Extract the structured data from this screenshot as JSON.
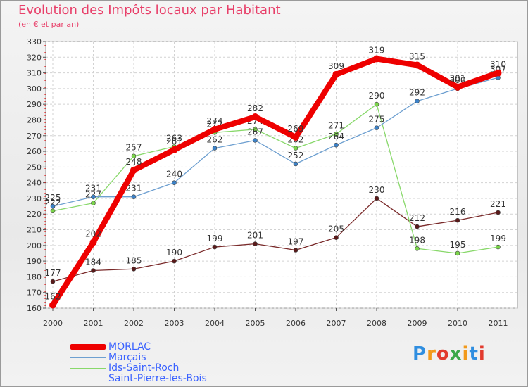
{
  "title": "Evolution des Impôts locaux par Habitant",
  "subtitle": "(en € et par an)",
  "logo_text": "Proxiti",
  "logo_colors": [
    "#2f8ee0",
    "#f29a1c",
    "#e23b2e",
    "#3aa84a",
    "#f29a1c",
    "#2f8ee0",
    "#e23b2e"
  ],
  "chart_data": {
    "type": "line",
    "title": "Evolution des Impôts locaux par Habitant",
    "subtitle": "(en € et par an)",
    "xlabel": "",
    "ylabel": "",
    "x": [
      "2000",
      "2001",
      "2002",
      "2003",
      "2004",
      "2005",
      "2006",
      "2007",
      "2008",
      "2009",
      "2010",
      "2011"
    ],
    "ylim": [
      160,
      330
    ],
    "yticks": [
      "160",
      "170",
      "180",
      "190",
      "200",
      "210",
      "220",
      "230",
      "240",
      "250",
      "260",
      "270",
      "280",
      "290",
      "300",
      "310",
      "320",
      "330"
    ],
    "grid": true,
    "legend_position": "bottom-left",
    "series": [
      {
        "name": "Saint-Pierre-les-Bois",
        "color": "#7a2a2a",
        "marker_color": "#5a1a1a",
        "values": [
          177,
          184,
          185,
          190,
          199,
          201,
          197,
          205,
          230,
          212,
          216,
          221
        ],
        "labels": [
          "177",
          "184",
          "185",
          "190",
          "199",
          "201",
          "197",
          "205",
          "230",
          "212",
          "216",
          "221"
        ]
      },
      {
        "name": "Ids-Saint-Roch",
        "color": "#88d86a",
        "marker_color": "#7ad44a",
        "values": [
          222,
          227,
          257,
          263,
          272,
          274,
          262,
          271,
          290,
          198,
          195,
          199
        ],
        "labels": [
          "222",
          "227",
          "257",
          "263",
          "272",
          "274",
          "262",
          "271",
          "290",
          "198",
          "195",
          "199"
        ]
      },
      {
        "name": "Marçais",
        "color": "#6d9fd0",
        "marker_color": "#3c82c8",
        "values": [
          225,
          231,
          231,
          240,
          262,
          267,
          252,
          264,
          275,
          292,
          300,
          307
        ],
        "labels": [
          "225",
          "231",
          "231",
          "240",
          "262",
          "267",
          "252",
          "264",
          "275",
          "292",
          "300",
          "307"
        ]
      },
      {
        "name": "MORLAC",
        "color": "#ee0000",
        "marker_color": "#ee0000",
        "values": [
          162,
          202,
          248,
          261,
          274,
          282,
          269,
          309,
          319,
          315,
          301,
          310
        ],
        "labels": [
          "162",
          "202",
          "248",
          "261",
          "274",
          "282",
          "269",
          "309",
          "319",
          "315",
          "301",
          "310"
        ]
      }
    ],
    "legend": [
      "MORLAC",
      "Marçais",
      "Ids-Saint-Roch",
      "Saint-Pierre-les-Bois"
    ]
  }
}
